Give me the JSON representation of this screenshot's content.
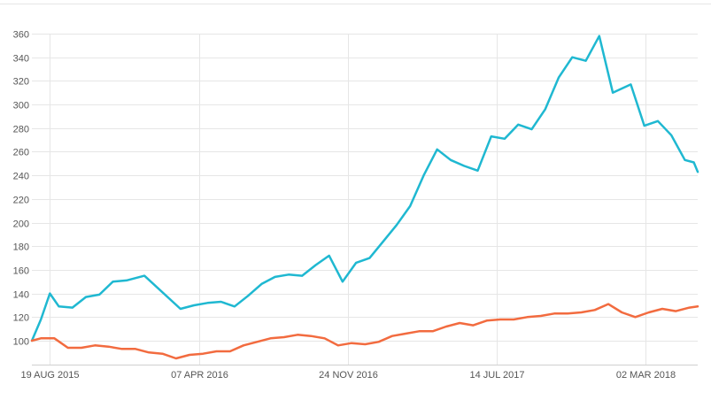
{
  "chart_data": {
    "type": "line",
    "title": "",
    "xlabel": "",
    "ylabel": "",
    "ylim": [
      85,
      362
    ],
    "yticks": [
      100,
      120,
      140,
      160,
      180,
      200,
      220,
      240,
      260,
      280,
      300,
      320,
      340,
      360
    ],
    "xtick_labels": [
      "19 AUG 2015",
      "07 APR 2016",
      "24 NOV 2016",
      "14 JUL 2017",
      "02 MAR 2018"
    ],
    "xlim": [
      "2015-07-22",
      "2018-05-22"
    ],
    "grid": true,
    "legend": "none",
    "series": [
      {
        "color": "#1fb8d1",
        "points": [
          [
            "2015-07-22",
            100
          ],
          [
            "2015-08-05",
            118
          ],
          [
            "2015-08-19",
            140
          ],
          [
            "2015-09-02",
            129
          ],
          [
            "2015-09-23",
            128
          ],
          [
            "2015-10-14",
            137
          ],
          [
            "2015-11-04",
            139
          ],
          [
            "2015-11-25",
            150
          ],
          [
            "2015-12-16",
            151
          ],
          [
            "2016-01-13",
            155
          ],
          [
            "2016-03-09",
            127
          ],
          [
            "2016-03-30",
            130
          ],
          [
            "2016-04-20",
            132
          ],
          [
            "2016-05-11",
            133
          ],
          [
            "2016-06-01",
            129
          ],
          [
            "2016-06-22",
            138
          ],
          [
            "2016-07-13",
            148
          ],
          [
            "2016-08-03",
            154
          ],
          [
            "2016-08-24",
            156
          ],
          [
            "2016-09-14",
            155
          ],
          [
            "2016-10-05",
            164
          ],
          [
            "2016-10-26",
            172
          ],
          [
            "2016-11-16",
            150
          ],
          [
            "2016-12-07",
            166
          ],
          [
            "2016-12-28",
            170
          ],
          [
            "2017-01-18",
            184
          ],
          [
            "2017-02-08",
            198
          ],
          [
            "2017-03-01",
            214
          ],
          [
            "2017-03-22",
            240
          ],
          [
            "2017-04-12",
            262
          ],
          [
            "2017-05-03",
            253
          ],
          [
            "2017-05-24",
            248
          ],
          [
            "2017-06-14",
            244
          ],
          [
            "2017-07-05",
            273
          ],
          [
            "2017-07-26",
            271
          ],
          [
            "2017-08-16",
            283
          ],
          [
            "2017-09-06",
            279
          ],
          [
            "2017-09-27",
            296
          ],
          [
            "2017-10-18",
            323
          ],
          [
            "2017-11-08",
            340
          ],
          [
            "2017-11-29",
            337
          ],
          [
            "2017-12-20",
            358
          ],
          [
            "2018-01-10",
            310
          ],
          [
            "2018-02-07",
            317
          ],
          [
            "2018-02-28",
            282
          ],
          [
            "2018-03-21",
            286
          ],
          [
            "2018-04-11",
            274
          ],
          [
            "2018-05-02",
            253
          ],
          [
            "2018-05-16",
            251
          ],
          [
            "2018-05-22",
            243
          ]
        ]
      },
      {
        "color": "#f26b3f",
        "points": [
          [
            "2015-07-22",
            100
          ],
          [
            "2015-08-05",
            102
          ],
          [
            "2015-08-26",
            102
          ],
          [
            "2015-09-16",
            94
          ],
          [
            "2015-10-07",
            94
          ],
          [
            "2015-10-28",
            96
          ],
          [
            "2015-11-18",
            95
          ],
          [
            "2015-12-09",
            93
          ],
          [
            "2015-12-30",
            93
          ],
          [
            "2016-01-20",
            90
          ],
          [
            "2016-02-10",
            89
          ],
          [
            "2016-03-02",
            85
          ],
          [
            "2016-03-23",
            88
          ],
          [
            "2016-04-13",
            89
          ],
          [
            "2016-05-04",
            91
          ],
          [
            "2016-05-25",
            91
          ],
          [
            "2016-06-15",
            96
          ],
          [
            "2016-07-06",
            99
          ],
          [
            "2016-07-27",
            102
          ],
          [
            "2016-08-17",
            103
          ],
          [
            "2016-09-07",
            105
          ],
          [
            "2016-09-28",
            104
          ],
          [
            "2016-10-19",
            102
          ],
          [
            "2016-11-09",
            96
          ],
          [
            "2016-11-30",
            98
          ],
          [
            "2016-12-21",
            97
          ],
          [
            "2017-01-11",
            99
          ],
          [
            "2017-02-01",
            104
          ],
          [
            "2017-02-22",
            106
          ],
          [
            "2017-03-15",
            108
          ],
          [
            "2017-04-05",
            108
          ],
          [
            "2017-04-26",
            112
          ],
          [
            "2017-05-17",
            115
          ],
          [
            "2017-06-07",
            113
          ],
          [
            "2017-06-28",
            117
          ],
          [
            "2017-07-19",
            118
          ],
          [
            "2017-08-09",
            118
          ],
          [
            "2017-08-30",
            120
          ],
          [
            "2017-09-20",
            121
          ],
          [
            "2017-10-11",
            123
          ],
          [
            "2017-11-01",
            123
          ],
          [
            "2017-11-22",
            124
          ],
          [
            "2017-12-13",
            126
          ],
          [
            "2018-01-03",
            131
          ],
          [
            "2018-01-24",
            124
          ],
          [
            "2018-02-14",
            120
          ],
          [
            "2018-03-07",
            124
          ],
          [
            "2018-03-28",
            127
          ],
          [
            "2018-04-18",
            125
          ],
          [
            "2018-05-09",
            128
          ],
          [
            "2018-05-22",
            129
          ]
        ]
      }
    ]
  }
}
